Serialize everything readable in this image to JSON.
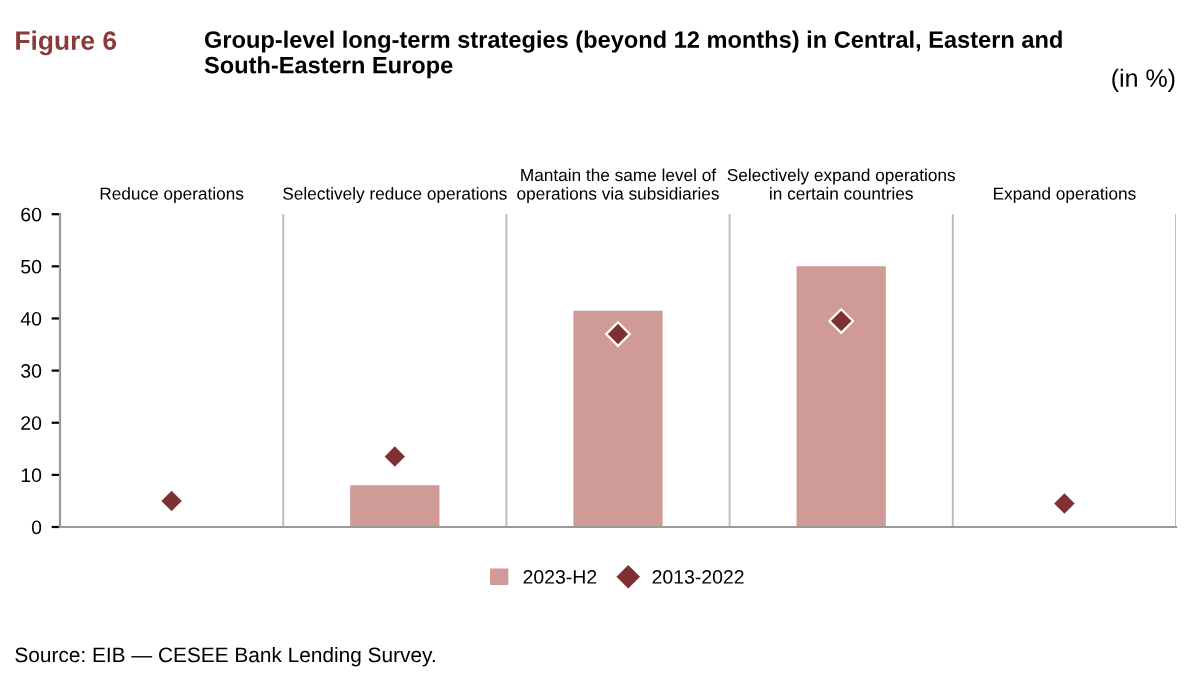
{
  "chart_data": {
    "type": "bar",
    "title": "Group-level long-term strategies (beyond 12 months) in Central, Eastern and South-Eastern Europe",
    "subtitle": "(in %)",
    "categories": [
      "Reduce operations",
      "Selectively reduce operations",
      "Mantain the same level of\noperations via subsidiaries",
      "Selectively expand operations\nin certain countries",
      "Expand operations"
    ],
    "series": [
      {
        "name": "2023-H2",
        "color": "#d09a96",
        "values": [
          0,
          8,
          41.5,
          50,
          0
        ]
      },
      {
        "name": "2013-2022",
        "type": "scatter",
        "color": "#7e3032",
        "marker": "diamond",
        "values": [
          5,
          13.5,
          37,
          39.5,
          4.5
        ]
      }
    ],
    "ylim": [
      0,
      60
    ],
    "yticks": [
      0,
      10,
      20,
      30,
      40,
      50,
      60
    ],
    "grid": "x",
    "legend": "bottom",
    "annotations": [
      "Figure 6",
      "Source: EIB — CESEE Bank Lending Survey."
    ]
  }
}
